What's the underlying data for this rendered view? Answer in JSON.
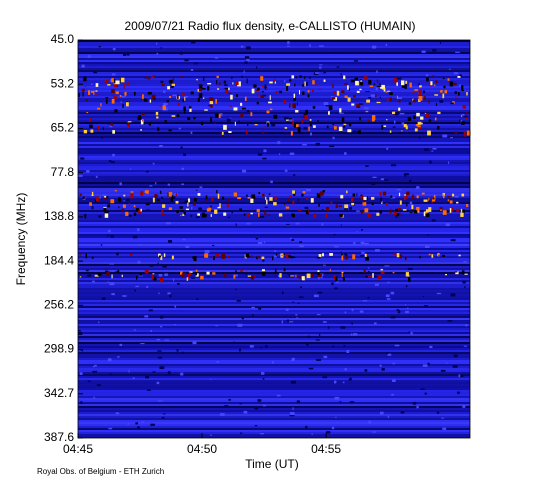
{
  "chart_data": {
    "type": "spectrogram",
    "title": "2009/07/21  Radio flux density, e-CALLISTO (HUMAIN)",
    "x_label": "Time (UT)",
    "y_label": "Frequency (MHz)",
    "footer": "Royal Obs. of Belgium - ETH Zurich",
    "xlim": [
      "04:45",
      "05:00:48"
    ],
    "xticks": [
      "04:45",
      "04:50",
      "04:55"
    ],
    "yticks": [
      {
        "value": 45,
        "label": "45.0"
      },
      {
        "value": 53.2,
        "label": "53.2"
      },
      {
        "value": 65.2,
        "label": "65.2"
      },
      {
        "value": 77.8,
        "label": "77.8"
      },
      {
        "value": 138.8,
        "label": "138.8"
      },
      {
        "value": 184.4,
        "label": "184.4"
      },
      {
        "value": 256.2,
        "label": "256.2"
      },
      {
        "value": 298.9,
        "label": "298.9"
      },
      {
        "value": 342.7,
        "label": "342.7"
      },
      {
        "value": 387.6,
        "label": "387.6"
      }
    ]
  }
}
